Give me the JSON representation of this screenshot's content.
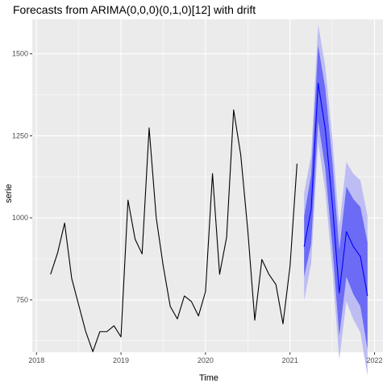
{
  "chart_data": {
    "type": "line",
    "title": "Forecasts from ARIMA(0,0,0)(0,1,0)[12] with drift",
    "xlabel": "Time",
    "ylabel": "serie",
    "xlim": [
      2017.95,
      2022.1
    ],
    "ylim": [
      590,
      1605
    ],
    "x_ticks": [
      2018,
      2019,
      2020,
      2021,
      2022
    ],
    "x_tick_labels": [
      "2018",
      "2019",
      "2020",
      "2021",
      "2022"
    ],
    "y_ticks": [
      750,
      1000,
      1250,
      1500
    ],
    "y_tick_labels": [
      "750",
      "1000",
      "1250",
      "1500"
    ],
    "grid": true,
    "legend": "none",
    "colors": {
      "panel": "#ebebeb",
      "grid_major": "#ffffff",
      "observed": "#000000",
      "forecast_line": "#0000ff",
      "pi80": "#6b6bf5",
      "pi95": "#bdbdf3"
    },
    "series": [
      {
        "x": [
          2018.167,
          2018.25,
          2018.333,
          2018.417,
          2018.5,
          2018.583,
          2018.667,
          2018.75,
          2018.833,
          2018.917,
          2019.0,
          2019.083,
          2019.167,
          2019.25,
          2019.333,
          2019.417,
          2019.5,
          2019.583,
          2019.667,
          2019.75,
          2019.833,
          2019.917,
          2020.0,
          2020.083,
          2020.167,
          2020.25,
          2020.333,
          2020.417,
          2020.5,
          2020.583,
          2020.667,
          2020.75,
          2020.833,
          2020.917,
          2021.0,
          2021.083
        ],
        "y": [
          828,
          893,
          984,
          815,
          734,
          653,
          592,
          653,
          653,
          671,
          637,
          1054,
          935,
          890,
          1274,
          1000,
          853,
          730,
          692,
          762,
          745,
          701,
          775,
          1135,
          828,
          941,
          1329,
          1192,
          963,
          688,
          873,
          828,
          797,
          677,
          852,
          1165
        ]
      },
      {
        "x": [
          2021.167,
          2021.25,
          2021.333,
          2021.417,
          2021.5,
          2021.583,
          2021.667,
          2021.75,
          2021.833,
          2021.917
        ],
        "y": [
          912,
          1025,
          1410,
          1272,
          1045,
          771,
          958,
          912,
          882,
          762
        ],
        "lo80": [
          820,
          920,
          1295,
          1150,
          916,
          640,
          820,
          767,
          730,
          600
        ],
        "hi80": [
          1005,
          1130,
          1525,
          1395,
          1175,
          902,
          1095,
          1057,
          1033,
          925
        ],
        "lo95": [
          748,
          860,
          1230,
          1082,
          846,
          568,
          745,
          690,
          650,
          518
        ],
        "hi95": [
          1076,
          1190,
          1590,
          1462,
          1244,
          974,
          1170,
          1134,
          1114,
          1006
        ]
      }
    ]
  }
}
